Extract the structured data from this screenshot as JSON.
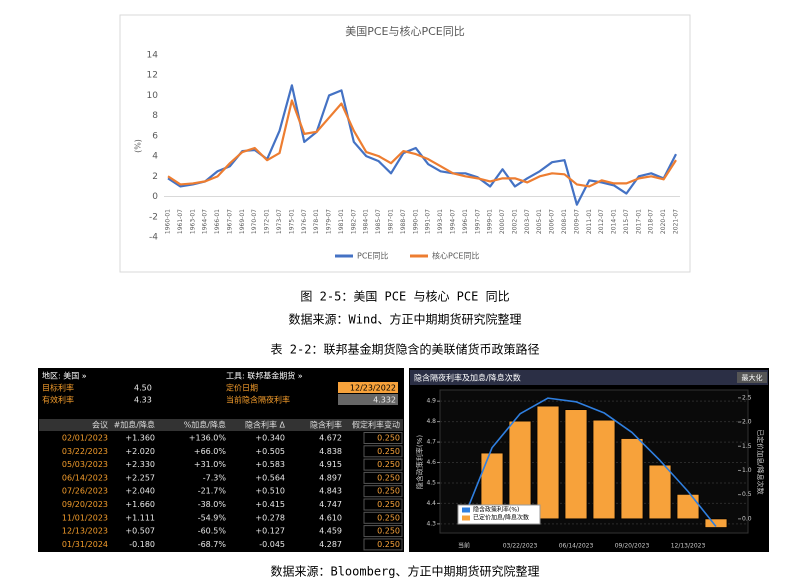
{
  "captions": {
    "figure": "图 2-5：美国 PCE 与核心 PCE 同比",
    "figure_source": "数据来源：Wind、方正中期期货研究院整理",
    "table": "表 2-2：联邦基金期货隐含的美联储货币政策路径",
    "table_source": "数据来源：Bloomberg、方正中期期货研究院整理"
  },
  "chart_data": [
    {
      "type": "line",
      "title": "美国PCE与核心PCE同比",
      "ylabel": "(%)",
      "categories": [
        "1960-01",
        "1961-07",
        "1963-01",
        "1964-07",
        "1966-01",
        "1967-07",
        "1969-01",
        "1970-07",
        "1972-01",
        "1973-07",
        "1975-01",
        "1976-07",
        "1978-01",
        "1979-07",
        "1981-01",
        "1982-07",
        "1984-01",
        "1985-07",
        "1987-01",
        "1988-07",
        "1990-01",
        "1991-07",
        "1993-01",
        "1994-07",
        "1996-01",
        "1997-07",
        "1999-01",
        "2000-07",
        "2002-01",
        "2003-07",
        "2005-01",
        "2006-07",
        "2008-01",
        "2009-07",
        "2011-01",
        "2012-07",
        "2014-01",
        "2015-07",
        "2017-01",
        "2018-07",
        "2020-01",
        "2021-07"
      ],
      "series": [
        {
          "name": "PCE同比",
          "color": "#4472c4",
          "values": [
            1.8,
            1.0,
            1.2,
            1.5,
            2.5,
            3.0,
            4.5,
            4.6,
            3.7,
            6.5,
            11.0,
            5.4,
            6.4,
            10.0,
            10.5,
            5.4,
            4.0,
            3.5,
            2.3,
            4.3,
            4.8,
            3.2,
            2.5,
            2.3,
            2.3,
            1.9,
            1.0,
            2.7,
            1.0,
            1.8,
            2.5,
            3.4,
            3.6,
            -0.8,
            1.6,
            1.4,
            1.1,
            0.3,
            2.0,
            2.3,
            1.8,
            4.2
          ]
        },
        {
          "name": "核心PCE同比",
          "color": "#ed7d31",
          "values": [
            2.0,
            1.2,
            1.3,
            1.5,
            2.0,
            3.3,
            4.4,
            4.8,
            3.6,
            4.3,
            9.5,
            6.2,
            6.4,
            7.8,
            9.2,
            6.5,
            4.4,
            4.0,
            3.3,
            4.5,
            4.2,
            3.7,
            3.0,
            2.3,
            2.0,
            1.8,
            1.5,
            1.8,
            1.8,
            1.4,
            2.0,
            2.3,
            2.2,
            1.2,
            1.0,
            1.6,
            1.3,
            1.3,
            1.8,
            2.0,
            1.7,
            3.6
          ]
        }
      ],
      "ylim": [
        -4,
        14
      ],
      "yticks": [
        -4,
        -2,
        0,
        2,
        4,
        6,
        8,
        10,
        12,
        14
      ],
      "grid": false
    },
    {
      "type": "bar_line",
      "title": "隐含隔夜利率及加息/降息次数",
      "ylabel": "隐含政策利率(%)",
      "y2label": "已定价加息/降息次数",
      "categories": [
        "当前",
        null,
        "03/22/2023",
        null,
        "06/14/2023",
        null,
        "09/20/2023",
        null,
        "12/13/2023",
        null
      ],
      "series": [
        {
          "name": "隐含政策利率(%)",
          "color": "#2f7fe0",
          "axis": "y",
          "values": [
            4.33,
            4.672,
            4.838,
            4.915,
            4.897,
            4.843,
            4.747,
            4.61,
            4.459,
            4.287
          ]
        },
        {
          "name": "已定价加息/降息次数",
          "color": "#f7a23b",
          "axis": "y2",
          "values": [
            null,
            1.36,
            2.02,
            2.33,
            2.257,
            2.04,
            1.66,
            1.111,
            0.507,
            -0.18
          ]
        }
      ],
      "ylim": [
        4.27,
        4.94
      ],
      "yticks": [
        4.3,
        4.4,
        4.5,
        4.6,
        4.7,
        4.8,
        4.9
      ],
      "y2lim": [
        -0.23,
        2.6
      ],
      "y2ticks": [
        {
          "value": 0,
          "label": "0.0"
        },
        0.5,
        {
          "value": 1,
          "label": "1.0"
        },
        1.5,
        {
          "value": 2,
          "label": "2.0"
        },
        2.5
      ],
      "grid": true
    }
  ],
  "terminal": {
    "region": "地区: 美国 »",
    "instrument": "工具: 联邦基金期货 »",
    "fields": [
      {
        "label": "目标利率",
        "value": "4.50"
      },
      {
        "label": "有效利率",
        "value": "4.33"
      },
      {
        "label": "定价日期",
        "value": "12/23/2022"
      },
      {
        "label": "当前隐含隔夜利率",
        "value": "4.332"
      }
    ],
    "columns": [
      "会议",
      "#加息/降息",
      "%加息/降息",
      "隐含利率 Δ",
      "隐含利率",
      "假定利率变动"
    ],
    "rows": [
      [
        "02/01/2023",
        "+1.360",
        "+136.0%",
        "+0.340",
        "4.672",
        "0.250"
      ],
      [
        "03/22/2023",
        "+2.020",
        "+66.0%",
        "+0.505",
        "4.838",
        "0.250"
      ],
      [
        "05/03/2023",
        "+2.330",
        "+31.0%",
        "+0.583",
        "4.915",
        "0.250"
      ],
      [
        "06/14/2023",
        "+2.257",
        "-7.3%",
        "+0.564",
        "4.897",
        "0.250"
      ],
      [
        "07/26/2023",
        "+2.040",
        "-21.7%",
        "+0.510",
        "4.843",
        "0.250"
      ],
      [
        "09/20/2023",
        "+1.660",
        "-38.0%",
        "+0.415",
        "4.747",
        "0.250"
      ],
      [
        "11/01/2023",
        "+1.111",
        "-54.9%",
        "+0.278",
        "4.610",
        "0.250"
      ],
      [
        "12/13/2023",
        "+0.507",
        "-60.5%",
        "+0.127",
        "4.459",
        "0.250"
      ],
      [
        "01/31/2024",
        "-0.180",
        "-68.7%",
        "-0.045",
        "4.287",
        "0.250"
      ]
    ],
    "maximize": "最大化"
  }
}
